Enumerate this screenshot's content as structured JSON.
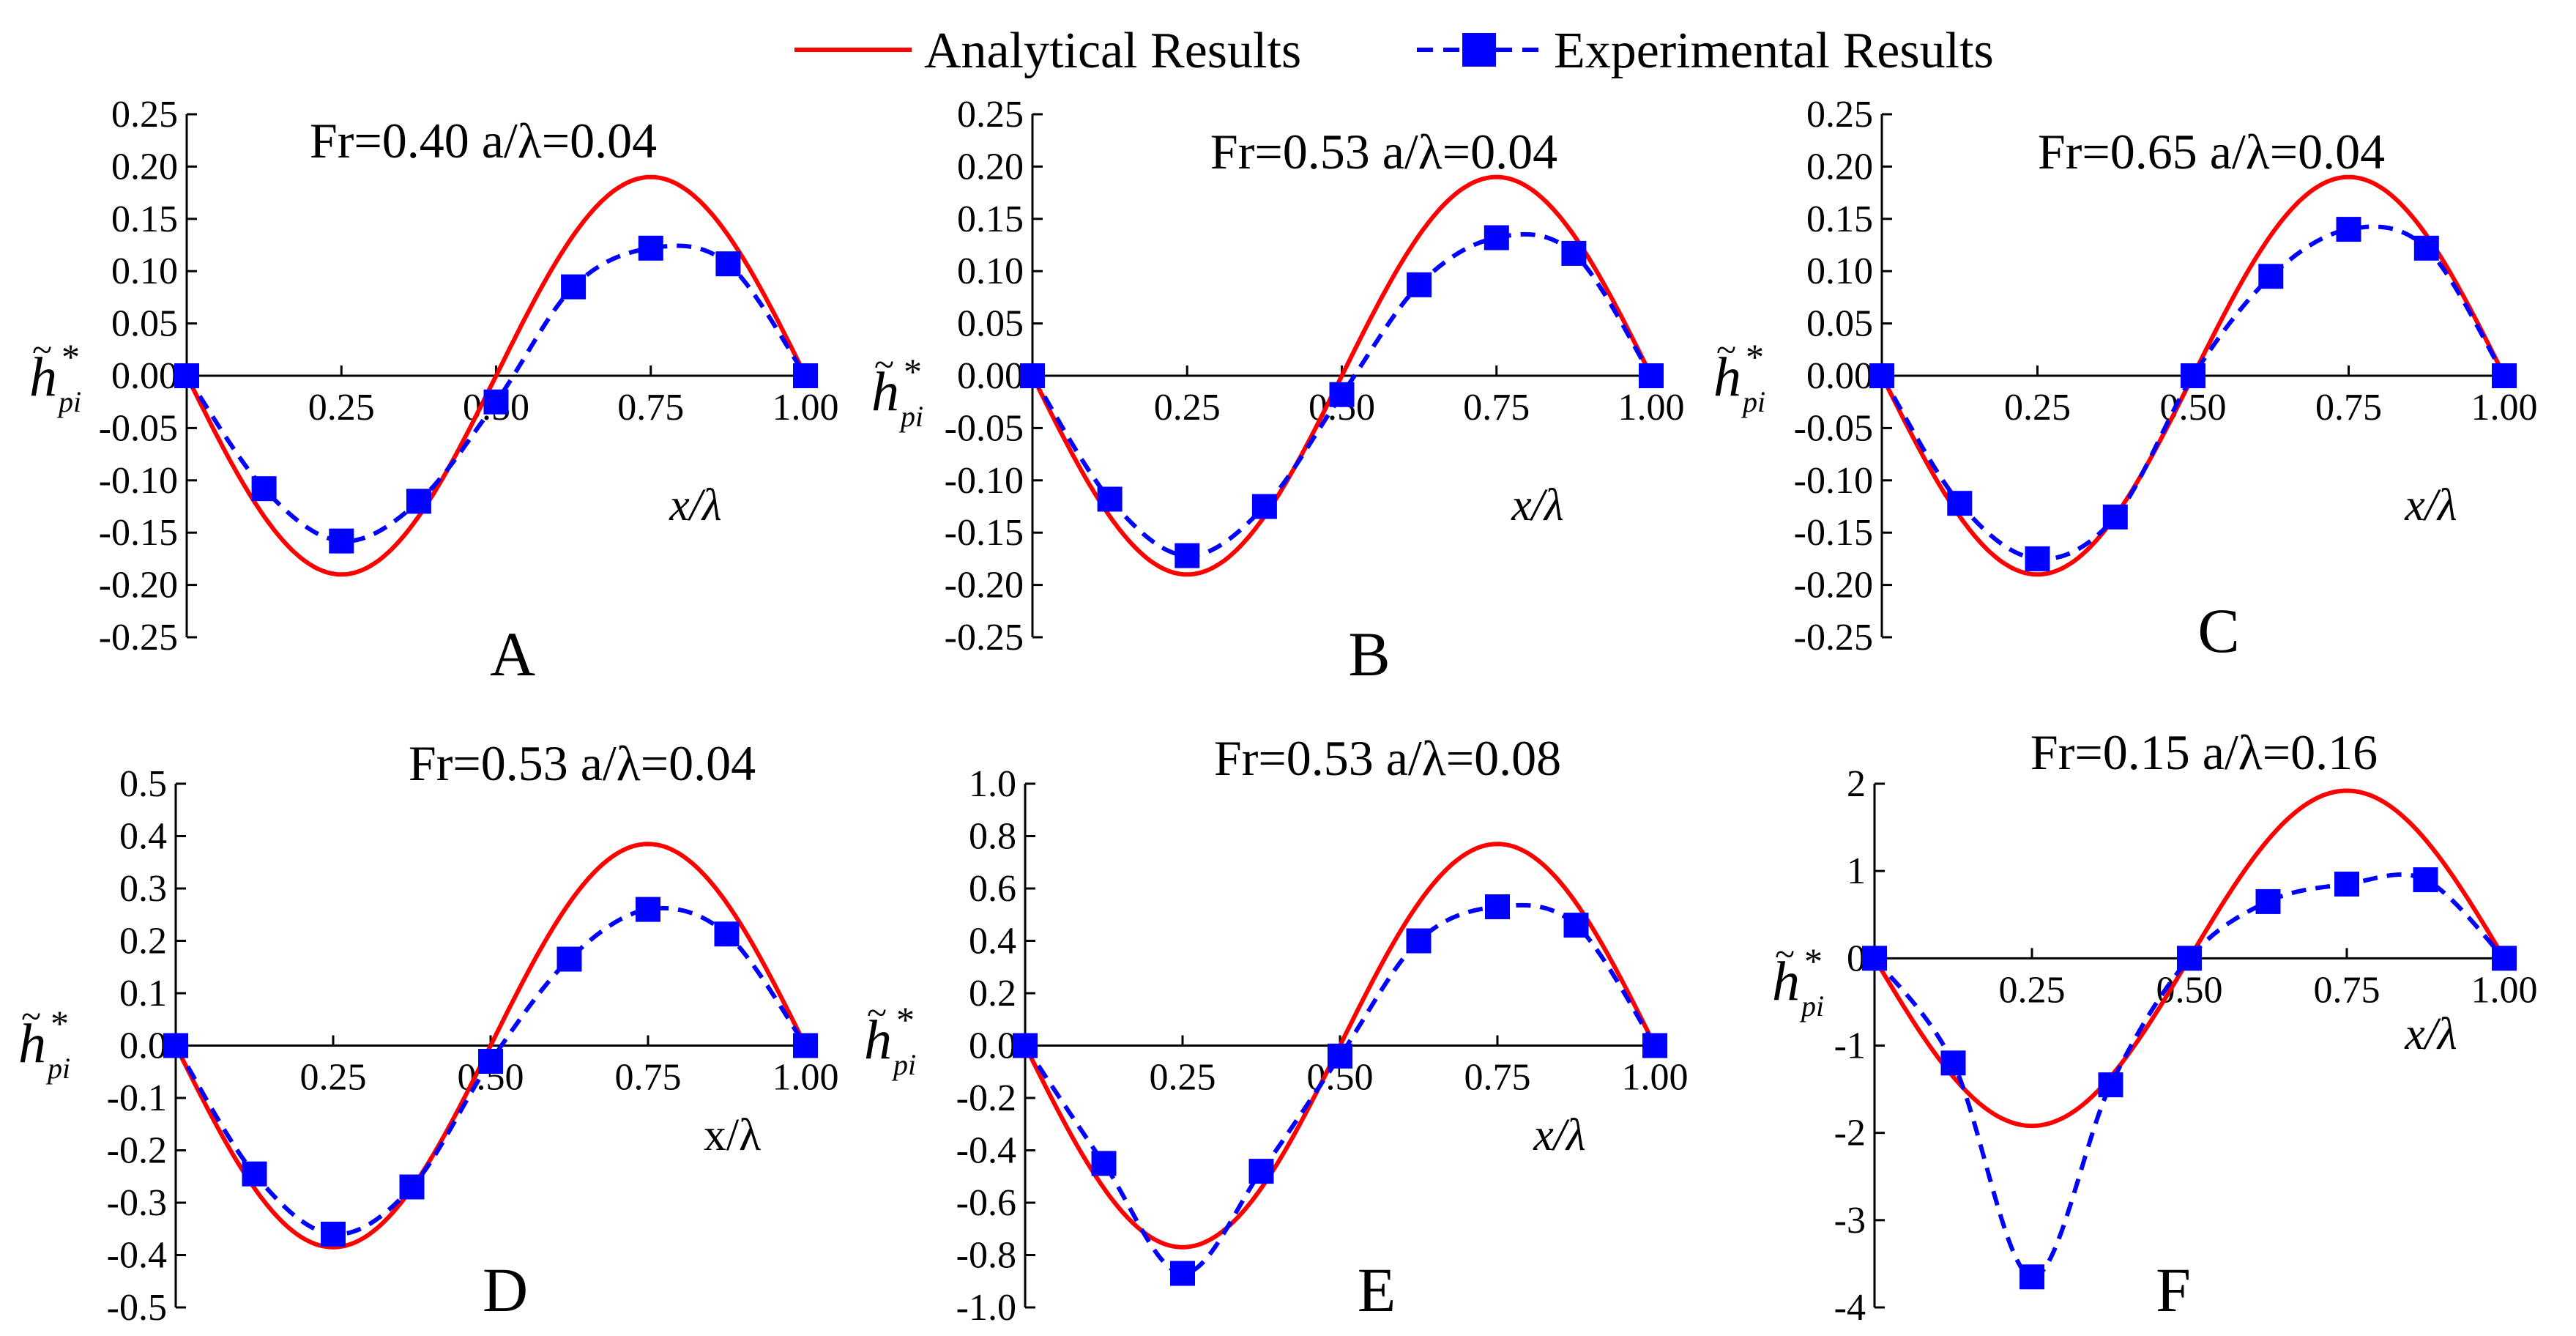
{
  "legend": {
    "analytical_label": "Analytical Results",
    "experimental_label": "Experimental Results"
  },
  "colors": {
    "analytical": "#ff0000",
    "experimental": "#0000ff",
    "axis": "#000000"
  },
  "chart_data": [
    {
      "type": "line",
      "panel": "A",
      "title": "Fr=0.40   a/λ=0.04",
      "xlabel": "x/λ",
      "ylabel": {
        "base": "h",
        "accent": "~",
        "sup": "*",
        "sub": "pi"
      },
      "ylim": [
        -0.25,
        0.25
      ],
      "yticks": [
        -0.25,
        -0.2,
        -0.15,
        -0.1,
        -0.05,
        0.0,
        0.05,
        0.1,
        0.15,
        0.2,
        0.25
      ],
      "ytick_labels": [
        "-0.25",
        "-0.20",
        "-0.15",
        "-0.10",
        "-0.05",
        "0.00",
        "0.05",
        "0.10",
        "0.15",
        "0.20",
        "0.25"
      ],
      "xlim": [
        0,
        1
      ],
      "xticks": [
        0.25,
        0.5,
        0.75,
        1.0
      ],
      "xtick_labels": [
        "0.25",
        "0.50",
        "0.75",
        "1.00"
      ],
      "analytical": {
        "name": "Analytical Results",
        "amplitude": 0.19
      },
      "experimental": {
        "name": "Experimental Results",
        "x": [
          0,
          0.125,
          0.25,
          0.375,
          0.5,
          0.625,
          0.75,
          0.875,
          1.0
        ],
        "y": [
          0,
          -0.108,
          -0.158,
          -0.12,
          -0.025,
          0.085,
          0.122,
          0.107,
          0
        ]
      }
    },
    {
      "type": "line",
      "panel": "B",
      "title": "Fr=0.53   a/λ=0.04",
      "xlabel": "x/λ",
      "ylabel": {
        "base": "h",
        "accent": "~",
        "sup": "*",
        "sub": "pi"
      },
      "ylim": [
        -0.25,
        0.25
      ],
      "yticks": [
        -0.25,
        -0.2,
        -0.15,
        -0.1,
        -0.05,
        0.0,
        0.05,
        0.1,
        0.15,
        0.2,
        0.25
      ],
      "ytick_labels": [
        "-0.25",
        "-0.20",
        "-0.15",
        "-0.10",
        "-0.05",
        "0.00",
        "0.05",
        "0.10",
        "0.15",
        "0.20",
        "0.25"
      ],
      "xlim": [
        0,
        1
      ],
      "xticks": [
        0.25,
        0.5,
        0.75,
        1.0
      ],
      "xtick_labels": [
        "0.25",
        "0.50",
        "0.75",
        "1.00"
      ],
      "analytical": {
        "name": "Analytical Results",
        "amplitude": 0.19
      },
      "experimental": {
        "name": "Experimental Results",
        "x": [
          0,
          0.125,
          0.25,
          0.375,
          0.5,
          0.625,
          0.75,
          0.875,
          1.0
        ],
        "y": [
          0,
          -0.118,
          -0.172,
          -0.125,
          -0.018,
          0.087,
          0.132,
          0.117,
          0
        ]
      }
    },
    {
      "type": "line",
      "panel": "C",
      "title": "Fr=0.65   a/λ=0.04",
      "xlabel": "x/λ",
      "ylabel": {
        "base": "h",
        "accent": "~",
        "sup": "*",
        "sub": "pi"
      },
      "ylim": [
        -0.25,
        0.25
      ],
      "yticks": [
        -0.25,
        -0.2,
        -0.15,
        -0.1,
        -0.05,
        0.0,
        0.05,
        0.1,
        0.15,
        0.2,
        0.25
      ],
      "ytick_labels": [
        "-0.25",
        "-0.20",
        "-0.15",
        "-0.10",
        "-0.05",
        "0.00",
        "0.05",
        "0.10",
        "0.15",
        "0.20",
        "0.25"
      ],
      "xlim": [
        0,
        1
      ],
      "xticks": [
        0.25,
        0.5,
        0.75,
        1.0
      ],
      "xtick_labels": [
        "0.25",
        "0.50",
        "0.75",
        "1.00"
      ],
      "analytical": {
        "name": "Analytical Results",
        "amplitude": 0.19
      },
      "experimental": {
        "name": "Experimental Results",
        "x": [
          0,
          0.125,
          0.25,
          0.375,
          0.5,
          0.625,
          0.75,
          0.875,
          1.0
        ],
        "y": [
          0,
          -0.122,
          -0.175,
          -0.135,
          0,
          0.095,
          0.14,
          0.122,
          0
        ]
      }
    },
    {
      "type": "line",
      "panel": "D",
      "title": "Fr=0.53   a/λ=0.04",
      "xlabel": "x/λ",
      "ylabel": {
        "base": "h",
        "accent": "~",
        "sup": "*",
        "sub": "pi"
      },
      "ylim": [
        -0.5,
        0.5
      ],
      "yticks": [
        -0.5,
        -0.4,
        -0.3,
        -0.2,
        -0.1,
        0.0,
        0.1,
        0.2,
        0.3,
        0.4,
        0.5
      ],
      "ytick_labels": [
        "-0.5",
        "-0.4",
        "-0.3",
        "-0.2",
        "-0.1",
        "0.0",
        "0.1",
        "0.2",
        "0.3",
        "0.4",
        "0.5"
      ],
      "xlim": [
        0,
        1
      ],
      "xticks": [
        0.25,
        0.5,
        0.75,
        1.0
      ],
      "xtick_labels": [
        "0.25",
        "0.50",
        "0.75",
        "1.00"
      ],
      "analytical": {
        "name": "Analytical Results",
        "amplitude": 0.385
      },
      "experimental": {
        "name": "Experimental Results",
        "x": [
          0,
          0.125,
          0.25,
          0.375,
          0.5,
          0.625,
          0.75,
          0.875,
          1.0
        ],
        "y": [
          0,
          -0.245,
          -0.36,
          -0.27,
          -0.03,
          0.165,
          0.26,
          0.213,
          0
        ]
      }
    },
    {
      "type": "line",
      "panel": "E",
      "title": "Fr=0.53   a/λ=0.08",
      "xlabel": "x/λ",
      "ylabel": {
        "base": "h",
        "accent": "~",
        "sup": "*",
        "sub": "pi"
      },
      "ylim": [
        -1.0,
        1.0
      ],
      "yticks": [
        -1.0,
        -0.8,
        -0.6,
        -0.4,
        -0.2,
        0.0,
        0.2,
        0.4,
        0.6,
        0.8,
        1.0
      ],
      "ytick_labels": [
        "-1.0",
        "-0.8",
        "-0.6",
        "-0.4",
        "-0.2",
        "0.0",
        "0.2",
        "0.4",
        "0.6",
        "0.8",
        "1.0"
      ],
      "xlim": [
        0,
        1
      ],
      "xticks": [
        0.25,
        0.5,
        0.75,
        1.0
      ],
      "xtick_labels": [
        "0.25",
        "0.50",
        "0.75",
        "1.00"
      ],
      "analytical": {
        "name": "Analytical Results",
        "amplitude": 0.77
      },
      "experimental": {
        "name": "Experimental Results",
        "x": [
          0,
          0.125,
          0.25,
          0.375,
          0.5,
          0.625,
          0.75,
          0.875,
          1.0
        ],
        "y": [
          0,
          -0.45,
          -0.87,
          -0.48,
          -0.04,
          0.4,
          0.53,
          0.46,
          0
        ]
      }
    },
    {
      "type": "line",
      "panel": "F",
      "title": "Fr=0.15   a/λ=0.16",
      "xlabel": "x/λ",
      "ylabel": {
        "base": "h",
        "accent": "~",
        "sup": "*",
        "sub": "pi"
      },
      "ylim": [
        -4,
        2
      ],
      "yticks": [
        -4,
        -3,
        -2,
        -1,
        0,
        1,
        2
      ],
      "ytick_labels": [
        "-4",
        "-3",
        "-2",
        "-1",
        "0",
        "1",
        "2"
      ],
      "xlim": [
        0,
        1
      ],
      "xticks": [
        0.25,
        0.5,
        0.75,
        1.0
      ],
      "xtick_labels": [
        "0.25",
        "0.50",
        "0.75",
        "1.00"
      ],
      "analytical": {
        "name": "Analytical Results",
        "amplitude": 1.92
      },
      "experimental": {
        "name": "Experimental Results",
        "x": [
          0,
          0.125,
          0.25,
          0.375,
          0.5,
          0.625,
          0.75,
          0.875,
          1.0
        ],
        "y": [
          0,
          -1.2,
          -3.65,
          -1.45,
          0,
          0.65,
          0.85,
          0.9,
          0
        ]
      }
    }
  ]
}
